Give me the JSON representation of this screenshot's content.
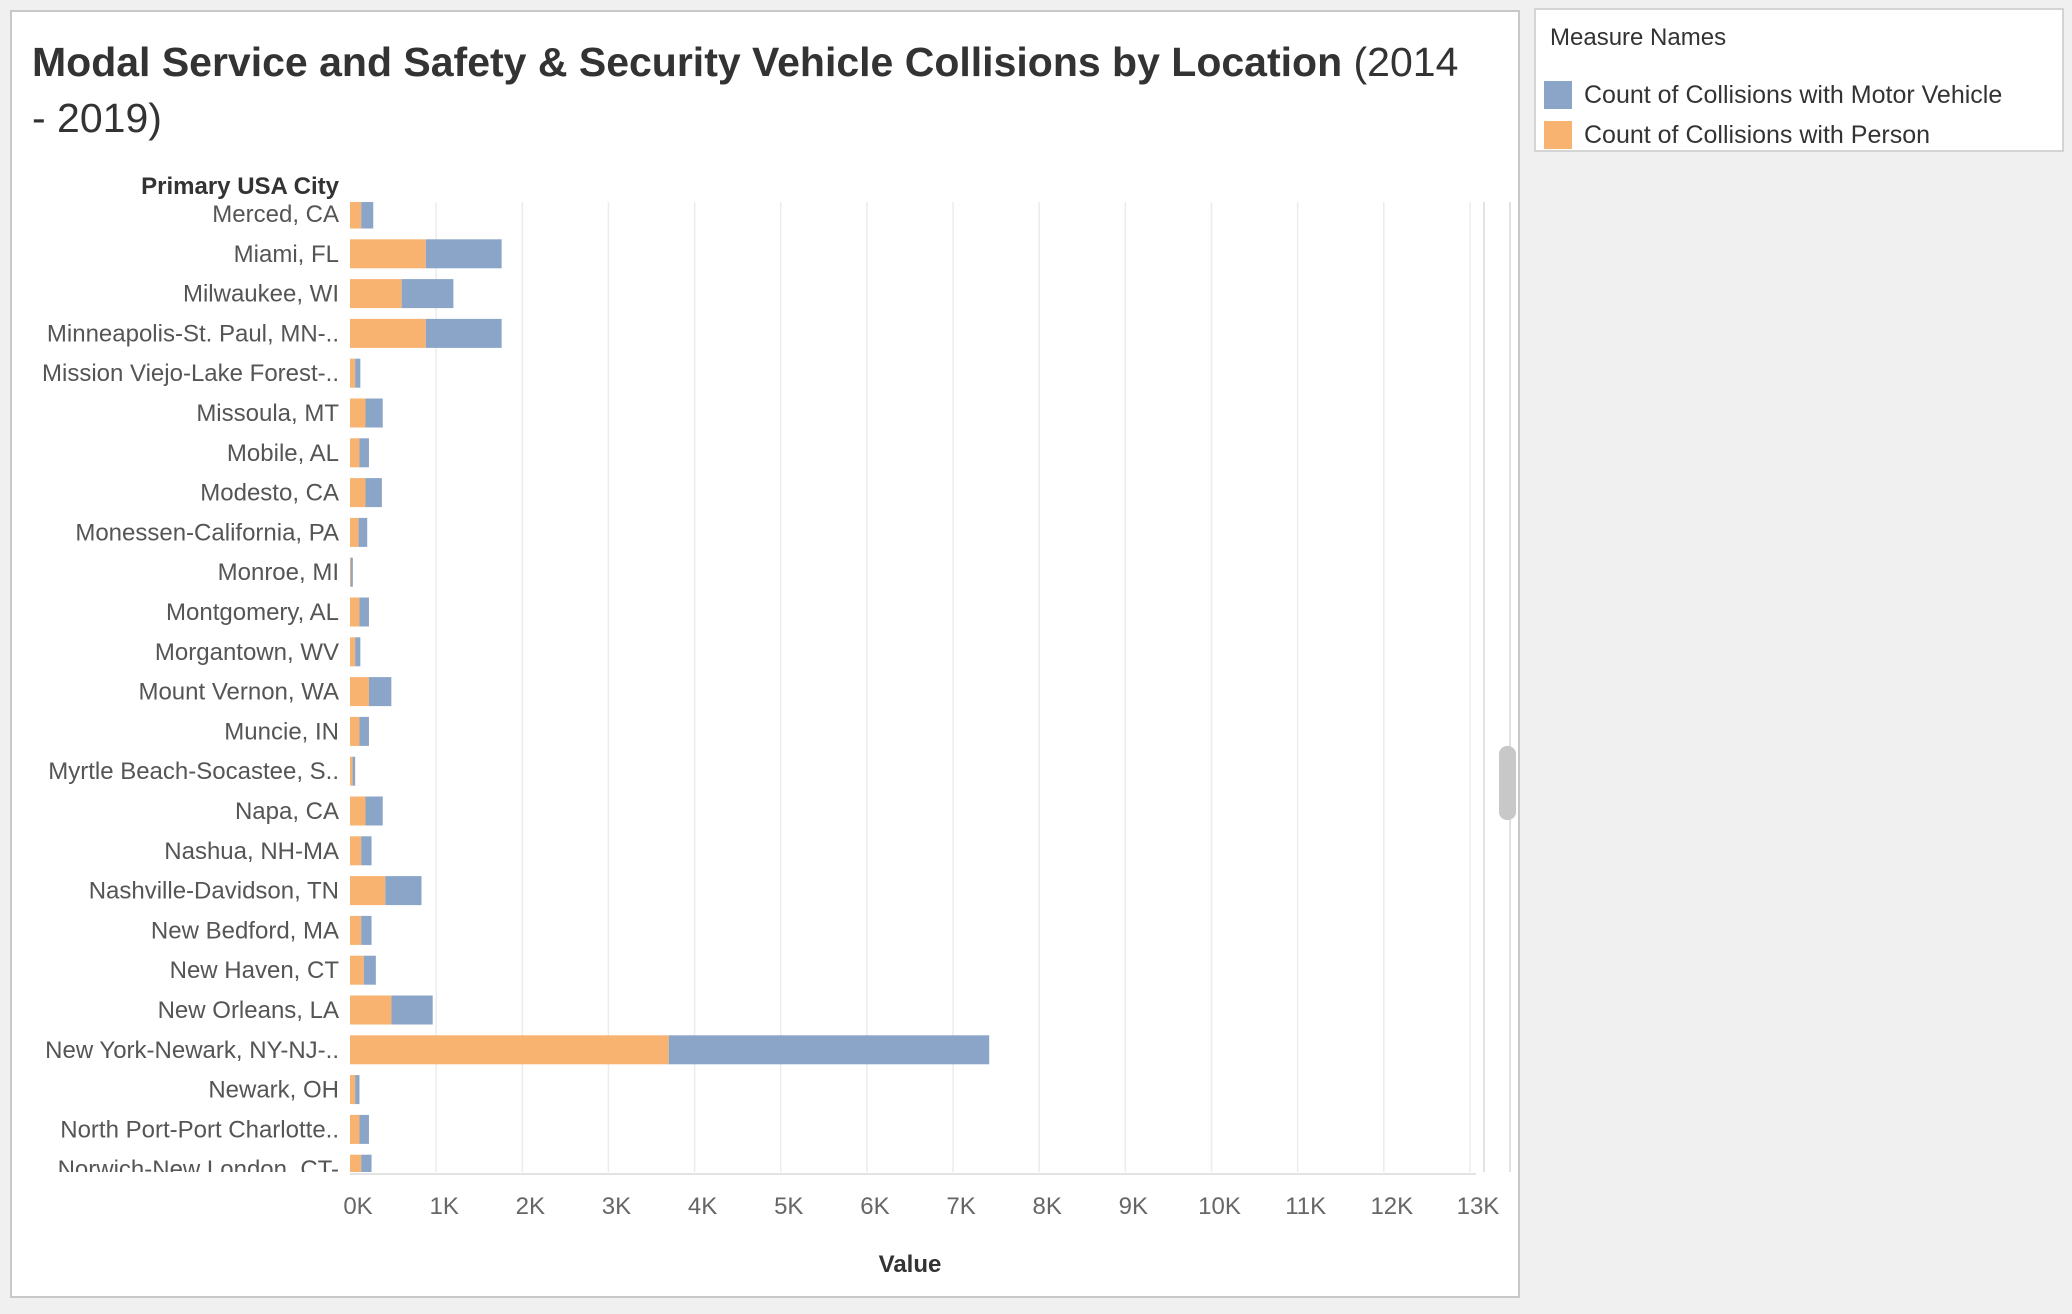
{
  "title": {
    "main": "Modal Service and Safety & Security Vehicle Collisions by Location",
    "sub": "(2014 - 2019)"
  },
  "legend": {
    "title": "Measure Names",
    "items": [
      {
        "label": "Count of Collisions with Motor Vehicle",
        "color": "#8aa5c8"
      },
      {
        "label": "Count of Collisions with Person",
        "color": "#f7b36f"
      }
    ]
  },
  "chart_data": {
    "type": "bar",
    "orientation": "horizontal",
    "stacked": true,
    "title": "Modal Service and Safety & Security Vehicle Collisions by Location (2014 - 2019)",
    "row_header": "Primary USA City",
    "xlabel": "Value",
    "xlim": [
      0,
      13000
    ],
    "xticks": [
      "0K",
      "1K",
      "2K",
      "3K",
      "4K",
      "5K",
      "6K",
      "7K",
      "8K",
      "9K",
      "10K",
      "11K",
      "12K",
      "13K"
    ],
    "grid": true,
    "legend_position": "top-right",
    "categories": [
      "Merced, CA",
      "Miami, FL",
      "Milwaukee, WI",
      "Minneapolis-St. Paul, MN-..",
      "Mission Viejo-Lake Forest-..",
      "Missoula, MT",
      "Mobile, AL",
      "Modesto, CA",
      "Monessen-California, PA",
      "Monroe, MI",
      "Montgomery, AL",
      "Morgantown, WV",
      "Mount Vernon, WA",
      "Muncie, IN",
      "Myrtle Beach-Socastee, S..",
      "Napa, CA",
      "Nashua, NH-MA",
      "Nashville-Davidson, TN",
      "New Bedford, MA",
      "New Haven, CT",
      "New Orleans, LA",
      "New York-Newark, NY-NJ-..",
      "Newark, OH",
      "North Port-Port Charlotte..",
      "Norwich-New London, CT-"
    ],
    "series": [
      {
        "name": "Count of Collisions with Person",
        "color": "#f7b36f",
        "values": [
          130,
          880,
          600,
          880,
          60,
          180,
          110,
          180,
          100,
          10,
          110,
          60,
          220,
          110,
          30,
          180,
          130,
          410,
          130,
          160,
          480,
          3700,
          60,
          110,
          130
        ]
      },
      {
        "name": "Count of Collisions with Motor Vehicle",
        "color": "#8aa5c8",
        "values": [
          140,
          880,
          600,
          880,
          60,
          200,
          110,
          190,
          100,
          20,
          110,
          60,
          260,
          110,
          30,
          200,
          120,
          420,
          120,
          140,
          480,
          3720,
          50,
          110,
          120
        ]
      }
    ]
  }
}
